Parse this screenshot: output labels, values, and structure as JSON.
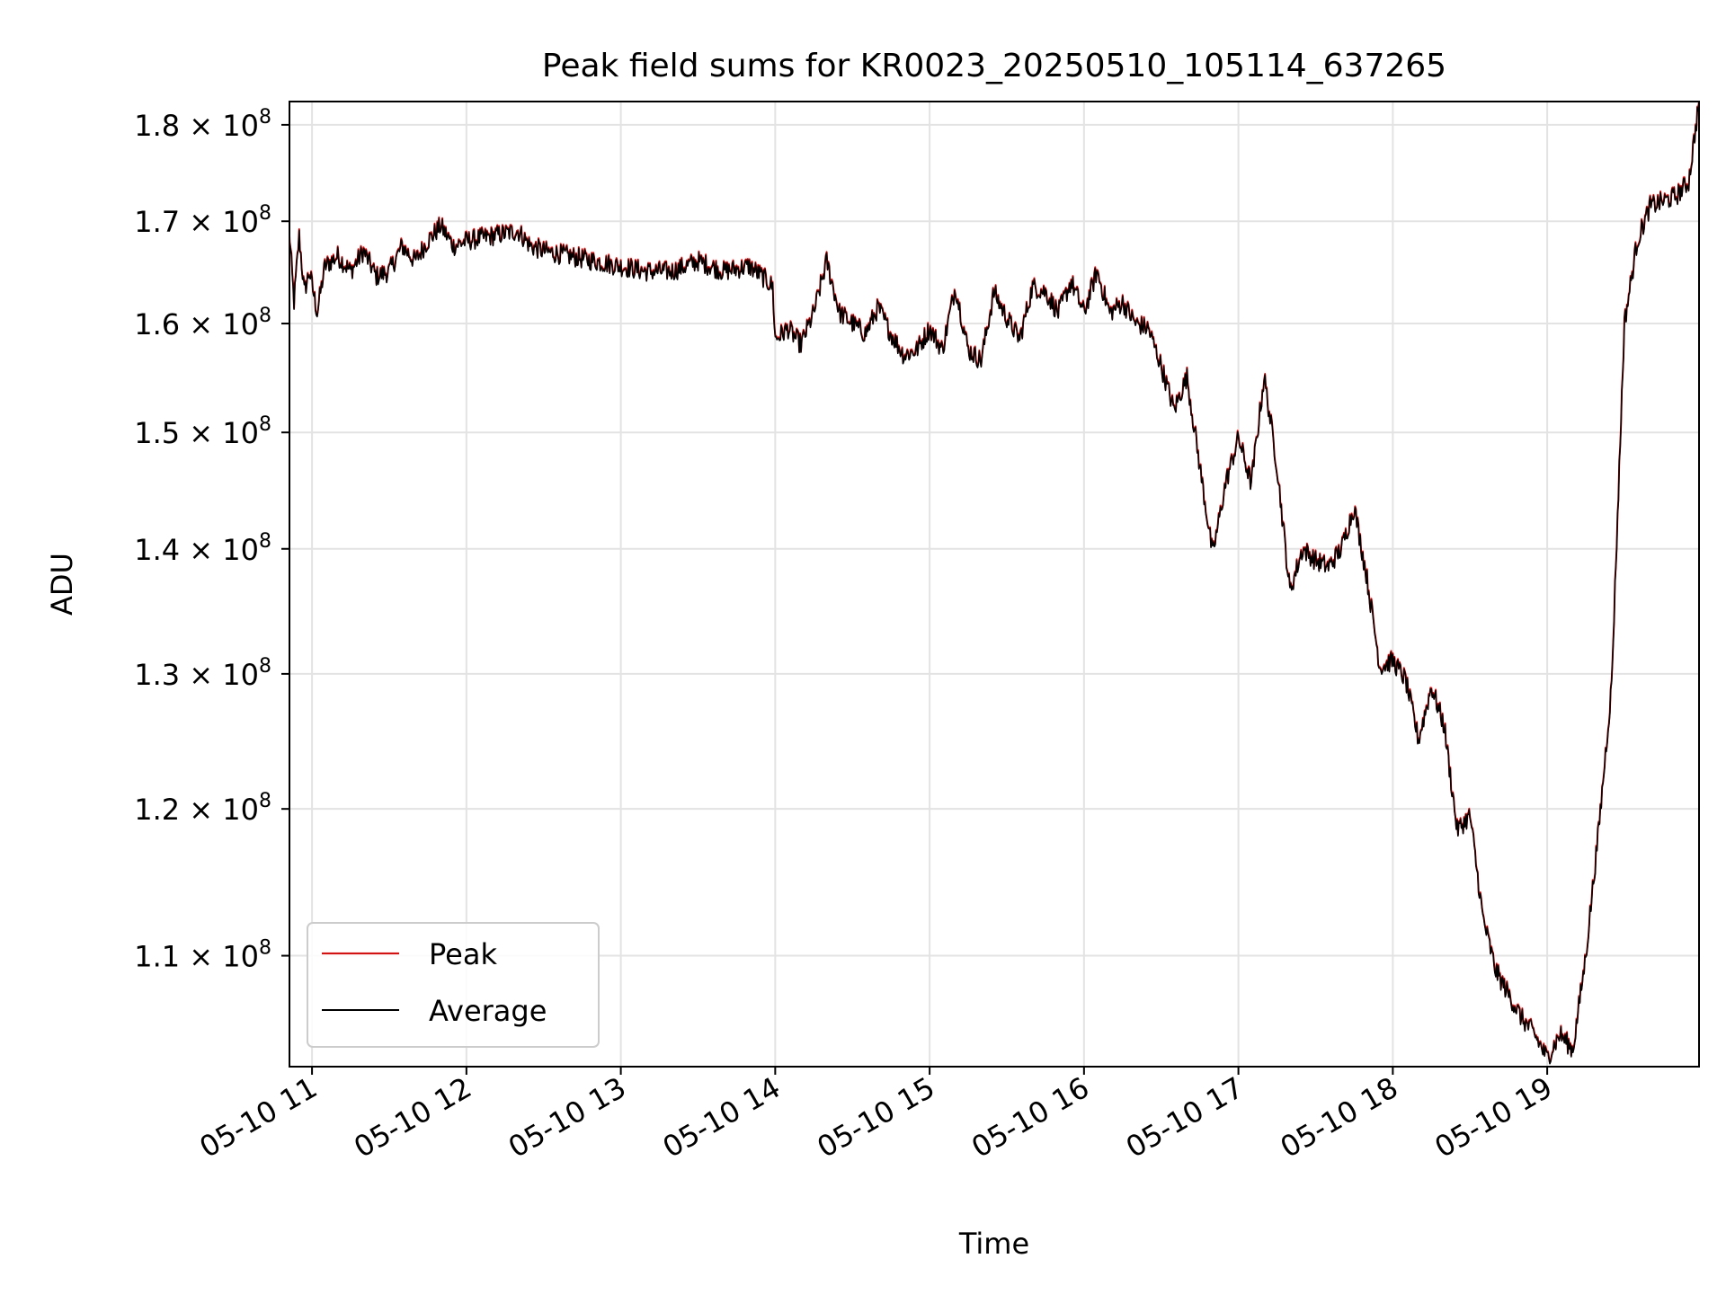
{
  "chart_data": {
    "type": "line",
    "title": "Peak field sums for KR0023_20250510_105114_637265",
    "xlabel": "Time",
    "ylabel": "ADU",
    "yscale": "log",
    "xlim": [
      "2025-05-10T10:51:14",
      "2025-05-10T19:59:00"
    ],
    "ylim": [
      103000000,
      182500000
    ],
    "grid": true,
    "legend_loc": "lower left",
    "x_ticks": [
      {
        "value": "2025-05-10T11:00",
        "label": "05-10 11"
      },
      {
        "value": "2025-05-10T12:00",
        "label": "05-10 12"
      },
      {
        "value": "2025-05-10T13:00",
        "label": "05-10 13"
      },
      {
        "value": "2025-05-10T14:00",
        "label": "05-10 14"
      },
      {
        "value": "2025-05-10T15:00",
        "label": "05-10 15"
      },
      {
        "value": "2025-05-10T16:00",
        "label": "05-10 16"
      },
      {
        "value": "2025-05-10T17:00",
        "label": "05-10 17"
      },
      {
        "value": "2025-05-10T18:00",
        "label": "05-10 18"
      },
      {
        "value": "2025-05-10T19:00",
        "label": "05-10 19"
      }
    ],
    "y_ticks": [
      {
        "value": 110000000,
        "mantissa": "1.1",
        "base": "10",
        "exponent": "8"
      },
      {
        "value": 120000000,
        "mantissa": "1.2",
        "base": "10",
        "exponent": "8"
      },
      {
        "value": 130000000,
        "mantissa": "1.3",
        "base": "10",
        "exponent": "8"
      },
      {
        "value": 140000000,
        "mantissa": "1.4",
        "base": "10",
        "exponent": "8"
      },
      {
        "value": 150000000,
        "mantissa": "1.5",
        "base": "10",
        "exponent": "8"
      },
      {
        "value": 160000000,
        "mantissa": "1.6",
        "base": "10",
        "exponent": "8"
      },
      {
        "value": 170000000,
        "mantissa": "1.7",
        "base": "10",
        "exponent": "8"
      },
      {
        "value": 180000000,
        "mantissa": "1.8",
        "base": "10",
        "exponent": "8"
      }
    ],
    "series": [
      {
        "name": "Peak",
        "color": "#ff0000"
      },
      {
        "name": "Average",
        "color": "#000000"
      }
    ],
    "x": [
      "2025-05-10T10:51",
      "2025-05-10T10:53",
      "2025-05-10T10:55",
      "2025-05-10T10:57",
      "2025-05-10T10:59",
      "2025-05-10T11:02",
      "2025-05-10T11:05",
      "2025-05-10T11:10",
      "2025-05-10T11:15",
      "2025-05-10T11:20",
      "2025-05-10T11:25",
      "2025-05-10T11:30",
      "2025-05-10T11:35",
      "2025-05-10T11:40",
      "2025-05-10T11:45",
      "2025-05-10T11:50",
      "2025-05-10T11:55",
      "2025-05-10T12:00",
      "2025-05-10T12:10",
      "2025-05-10T12:20",
      "2025-05-10T12:25",
      "2025-05-10T12:30",
      "2025-05-10T12:40",
      "2025-05-10T12:50",
      "2025-05-10T13:00",
      "2025-05-10T13:10",
      "2025-05-10T13:20",
      "2025-05-10T13:30",
      "2025-05-10T13:40",
      "2025-05-10T13:50",
      "2025-05-10T13:55",
      "2025-05-10T13:59",
      "2025-05-10T14:00",
      "2025-05-10T14:05",
      "2025-05-10T14:10",
      "2025-05-10T14:15",
      "2025-05-10T14:20",
      "2025-05-10T14:25",
      "2025-05-10T14:30",
      "2025-05-10T14:35",
      "2025-05-10T14:40",
      "2025-05-10T14:45",
      "2025-05-10T14:50",
      "2025-05-10T14:55",
      "2025-05-10T15:00",
      "2025-05-10T15:05",
      "2025-05-10T15:10",
      "2025-05-10T15:15",
      "2025-05-10T15:20",
      "2025-05-10T15:25",
      "2025-05-10T15:30",
      "2025-05-10T15:35",
      "2025-05-10T15:40",
      "2025-05-10T15:45",
      "2025-05-10T15:50",
      "2025-05-10T15:55",
      "2025-05-10T16:00",
      "2025-05-10T16:05",
      "2025-05-10T16:10",
      "2025-05-10T16:15",
      "2025-05-10T16:20",
      "2025-05-10T16:25",
      "2025-05-10T16:30",
      "2025-05-10T16:35",
      "2025-05-10T16:40",
      "2025-05-10T16:45",
      "2025-05-10T16:50",
      "2025-05-10T16:55",
      "2025-05-10T17:00",
      "2025-05-10T17:05",
      "2025-05-10T17:10",
      "2025-05-10T17:15",
      "2025-05-10T17:20",
      "2025-05-10T17:25",
      "2025-05-10T17:30",
      "2025-05-10T17:35",
      "2025-05-10T17:40",
      "2025-05-10T17:45",
      "2025-05-10T17:50",
      "2025-05-10T17:55",
      "2025-05-10T18:00",
      "2025-05-10T18:05",
      "2025-05-10T18:10",
      "2025-05-10T18:15",
      "2025-05-10T18:20",
      "2025-05-10T18:25",
      "2025-05-10T18:30",
      "2025-05-10T18:35",
      "2025-05-10T18:40",
      "2025-05-10T18:45",
      "2025-05-10T18:50",
      "2025-05-10T18:55",
      "2025-05-10T19:00",
      "2025-05-10T19:05",
      "2025-05-10T19:10",
      "2025-05-10T19:15",
      "2025-05-10T19:20",
      "2025-05-10T19:25",
      "2025-05-10T19:30",
      "2025-05-10T19:35",
      "2025-05-10T19:40",
      "2025-05-10T19:45",
      "2025-05-10T19:50",
      "2025-05-10T19:55",
      "2025-05-10T19:59"
    ],
    "values": [
      169500000,
      162000000,
      168500000,
      163000000,
      165000000,
      161000000,
      165500000,
      166500000,
      165000000,
      167000000,
      164500000,
      165000000,
      167500000,
      166000000,
      168000000,
      169500000,
      167500000,
      168000000,
      168500000,
      169000000,
      167500000,
      167000000,
      166500000,
      166000000,
      165500000,
      165000000,
      165000000,
      166000000,
      165000000,
      165500000,
      164500000,
      163500000,
      158500000,
      159500000,
      158000000,
      161000000,
      166000000,
      161000000,
      160000000,
      159000000,
      161500000,
      159000000,
      157000000,
      157500000,
      159500000,
      157500000,
      163500000,
      157500000,
      156500000,
      163000000,
      160500000,
      158500000,
      163500000,
      163000000,
      161000000,
      164000000,
      161000000,
      165000000,
      161000000,
      162000000,
      160000000,
      159500000,
      156000000,
      152000000,
      155000000,
      147000000,
      139500000,
      145500000,
      149500000,
      145500000,
      155000000,
      147000000,
      136500000,
      140000000,
      139000000,
      138500000,
      140000000,
      143500000,
      137500000,
      130500000,
      131000000,
      129500000,
      125000000,
      129000000,
      126000000,
      118500000,
      119500000,
      112500000,
      109000000,
      107500000,
      106000000,
      105000000,
      103500000,
      105000000,
      104000000,
      110000000,
      118500000,
      129000000,
      160000000,
      168000000,
      171500000,
      172000000,
      172500000,
      174000000,
      182500000
    ]
  },
  "legend": {
    "peak_label": "Peak",
    "average_label": "Average"
  }
}
